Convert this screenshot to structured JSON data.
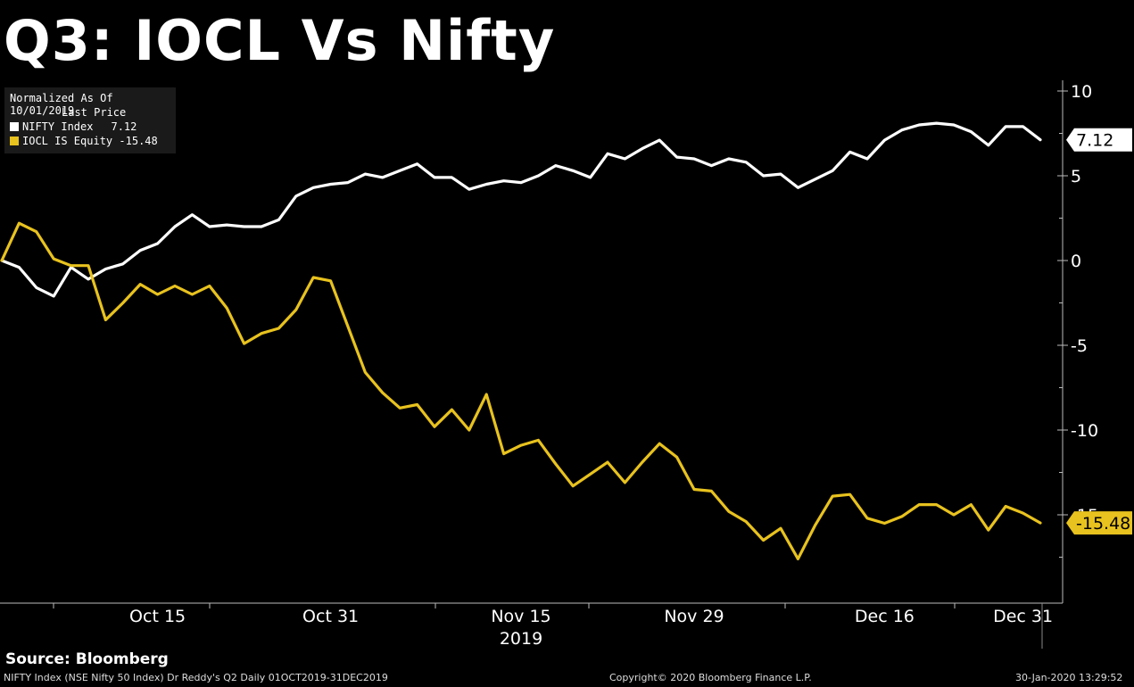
{
  "title": "Q3: IOCL Vs Nifty",
  "legend": {
    "header_line1": "Normalized As Of 10/01/2019",
    "header_line2": "Last Price",
    "items": [
      {
        "label": "NIFTY Index",
        "value": "7.12",
        "color": "#ffffff"
      },
      {
        "label": "IOCL IS Equity",
        "value": "-15.48",
        "color": "#e8c21e"
      }
    ]
  },
  "source": "Source: Bloomberg",
  "footer": {
    "left": "NIFTY Index (NSE Nifty 50 Index) Dr Reddy's Q2  Daily 01OCT2019-31DEC2019",
    "center": "Copyright© 2020 Bloomberg Finance L.P.",
    "right": "30-Jan-2020 13:29:52"
  },
  "chart_data": {
    "type": "line",
    "title": "Q3: IOCL Vs Nifty",
    "xlabel": "2019",
    "ylabel": "",
    "ylim": [
      -20,
      11
    ],
    "yticks": [
      10,
      5,
      0,
      -5,
      -10,
      -15
    ],
    "ytick_labels": [
      "10",
      "5",
      "0",
      "-5",
      "-10",
      "-15"
    ],
    "xtick_labels": [
      "Oct 15",
      "Oct 31",
      "Nov 15",
      "Nov 29",
      "Dec 16",
      "Dec 31"
    ],
    "xtick_index": [
      9,
      19,
      30,
      40,
      51,
      59
    ],
    "grid": false,
    "series": [
      {
        "name": "NIFTY Index",
        "color": "#ffffff",
        "last_label": "7.12",
        "values": [
          0,
          -0.4,
          -1.6,
          -2.1,
          -0.4,
          -1.1,
          -0.5,
          -0.2,
          0.6,
          1.0,
          2.0,
          2.7,
          2.0,
          2.1,
          2.0,
          2.0,
          2.4,
          3.8,
          4.3,
          4.5,
          4.6,
          5.1,
          4.9,
          5.3,
          5.7,
          4.9,
          4.9,
          4.2,
          4.5,
          4.7,
          4.6,
          5.0,
          5.6,
          5.3,
          4.9,
          6.3,
          6.0,
          6.6,
          7.1,
          6.1,
          6.0,
          5.6,
          6.0,
          5.8,
          5.0,
          5.1,
          4.3,
          4.8,
          5.3,
          6.4,
          6.0,
          7.1,
          7.7,
          8.0,
          8.1,
          8.0,
          7.6,
          6.8,
          7.9,
          7.9,
          7.12
        ]
      },
      {
        "name": "IOCL IS Equity",
        "color": "#e8c21e",
        "last_label": "-15.48",
        "values": [
          0,
          2.2,
          1.7,
          0.1,
          -0.3,
          -0.3,
          -3.5,
          -2.5,
          -1.4,
          -2.0,
          -1.5,
          -2.0,
          -1.5,
          -2.8,
          -4.9,
          -4.3,
          -4.0,
          -2.9,
          -1.0,
          -1.2,
          -3.9,
          -6.6,
          -7.8,
          -8.7,
          -8.5,
          -9.8,
          -8.8,
          -10.0,
          -7.9,
          -11.4,
          -10.9,
          -10.6,
          -12.0,
          -13.3,
          -12.6,
          -11.9,
          -13.1,
          -11.9,
          -10.8,
          -11.6,
          -13.5,
          -13.6,
          -14.8,
          -15.4,
          -16.5,
          -15.8,
          -17.6,
          -15.6,
          -13.9,
          -13.8,
          -15.2,
          -15.5,
          -15.1,
          -14.4,
          -14.4,
          -15.0,
          -14.4,
          -15.9,
          -14.5,
          -14.9,
          -15.48
        ]
      }
    ]
  }
}
